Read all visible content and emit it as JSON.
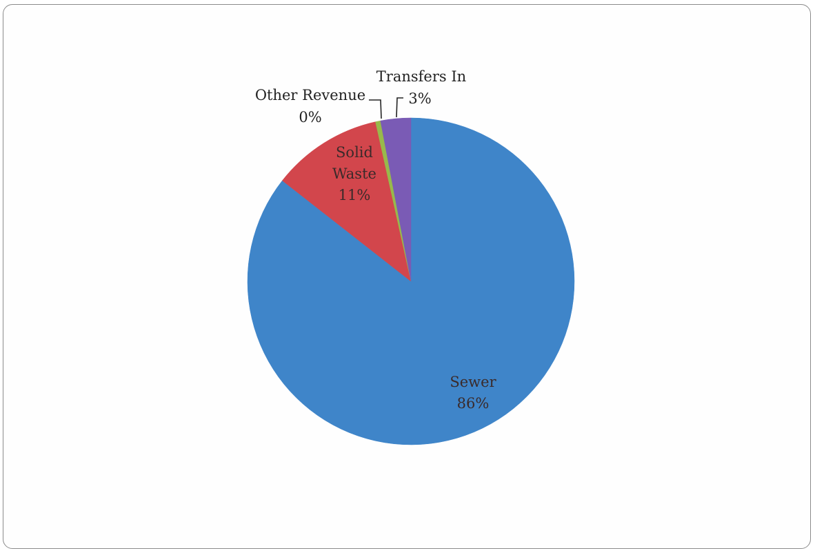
{
  "chart_data": {
    "type": "pie",
    "title": "",
    "slices": [
      {
        "name": "Sewer",
        "value": 86,
        "label": "86%",
        "color": "#3f85c9"
      },
      {
        "name": "Solid Waste",
        "value": 11,
        "label": "11%",
        "color": "#d2464c"
      },
      {
        "name": "Other Revenue",
        "value": 0.5,
        "label": "0%",
        "color": "#98b94b"
      },
      {
        "name": "Transfers In",
        "value": 3,
        "label": "3%",
        "color": "#7a5bb5"
      }
    ],
    "legend": "none",
    "start_angle": "12 o'clock",
    "direction": "clockwise"
  }
}
